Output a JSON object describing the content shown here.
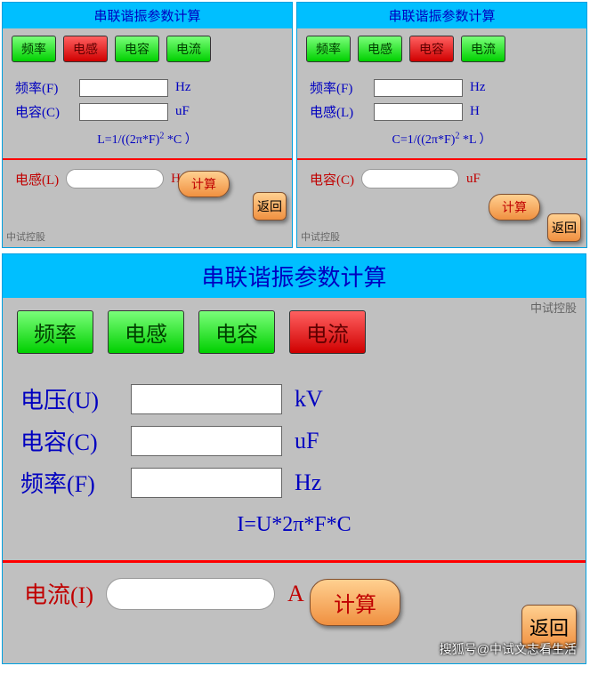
{
  "shared": {
    "title": "串联谐振参数计算",
    "tabs": {
      "freq": "频率",
      "ind": "电感",
      "cap": "电容",
      "cur": "电流"
    },
    "labels": {
      "freq": "频率(F)",
      "ind": "电感(L)",
      "cap": "电容(C)",
      "volt": "电压(U)",
      "cur": "电流(I)"
    },
    "units": {
      "hz": "Hz",
      "h": "H",
      "uf": "uF",
      "kv": "kV",
      "a": "A"
    },
    "buttons": {
      "calc": "计算",
      "back": "返回"
    },
    "company": "中试控股"
  },
  "panelA": {
    "active_tab": "ind",
    "formula_html": "L=1/((2π*F)<sup>2</sup> *C ）",
    "result_label": "电感(L)",
    "result_unit": "H"
  },
  "panelB": {
    "active_tab": "cap",
    "formula_html": "C=1/((2π*F)<sup>2</sup> *L ）",
    "result_label": "电容(C)",
    "result_unit": "uF"
  },
  "panelC": {
    "active_tab": "cur",
    "formula": "I=U*2π*F*C",
    "result_label": "电流(I)",
    "result_unit": "A"
  },
  "watermark": "搜狐号@中试文志看生活",
  "colors": {
    "titlebar_bg": "#00bfff",
    "title_text": "#0000c0",
    "panel_bg": "#c0c0c0",
    "tab_green_top": "#7aff7a",
    "tab_green_bot": "#00d000",
    "tab_red_top": "#ff6060",
    "tab_red_bot": "#d00000",
    "label_blue": "#0000c0",
    "result_red": "#c00000",
    "divider": "#ff0000",
    "btn_orange_top": "#ffd090",
    "btn_orange_bot": "#f09040",
    "footer_txt": "#666666"
  }
}
